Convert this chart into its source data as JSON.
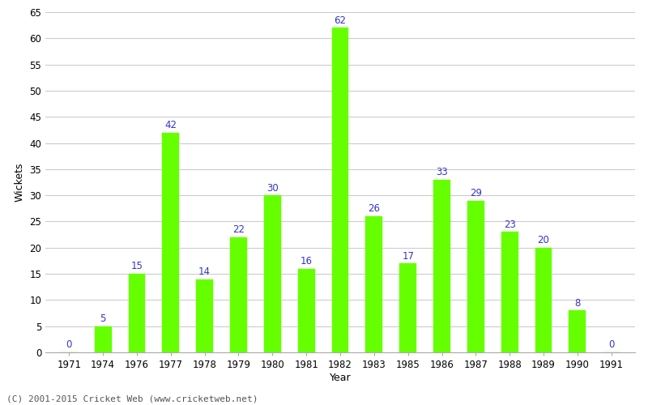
{
  "years": [
    "1971",
    "1974",
    "1976",
    "1977",
    "1978",
    "1979",
    "1980",
    "1981",
    "1982",
    "1983",
    "1985",
    "1986",
    "1987",
    "1988",
    "1989",
    "1990",
    "1991"
  ],
  "values": [
    0,
    5,
    15,
    42,
    14,
    22,
    30,
    16,
    62,
    26,
    17,
    33,
    29,
    23,
    20,
    8,
    0
  ],
  "bar_color": "#66ff00",
  "bar_edge_color": "#66ff00",
  "label_color": "#3333cc",
  "xlabel": "Year",
  "ylabel": "Wickets",
  "ylim": [
    0,
    65
  ],
  "yticks": [
    0,
    5,
    10,
    15,
    20,
    25,
    30,
    35,
    40,
    45,
    50,
    55,
    60,
    65
  ],
  "label_fontsize": 8.5,
  "axis_label_fontsize": 9,
  "footer_text": "(C) 2001-2015 Cricket Web (www.cricketweb.net)",
  "background_color": "#ffffff",
  "grid_color": "#cccccc"
}
